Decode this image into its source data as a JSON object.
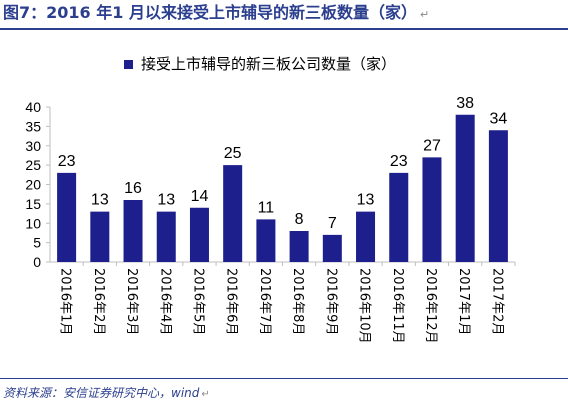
{
  "header": {
    "title": "图7：2016 年1 月以来接受上市辅导的新三板数量（家）",
    "title_mark": "↵"
  },
  "footer": {
    "source": "资料来源：安信证券研究中心，wind",
    "source_mark": "↵"
  },
  "colors": {
    "bar": "#1c1f8c",
    "title": "#2b3f8e",
    "axis": "#bfbfbf"
  },
  "chart_data": {
    "type": "bar",
    "title": "",
    "xlabel": "",
    "ylabel": "",
    "ylim": [
      0,
      40
    ],
    "yticks": [
      0,
      5,
      10,
      15,
      20,
      25,
      30,
      35,
      40
    ],
    "grid": false,
    "legend_position": "top-center",
    "categories": [
      "2016年1月",
      "2016年2月",
      "2016年3月",
      "2016年4月",
      "2016年5月",
      "2016年6月",
      "2016年7月",
      "2016年8月",
      "2016年9月",
      "2016年10月",
      "2016年11月",
      "2016年12月",
      "2017年1月",
      "2017年2月"
    ],
    "series": [
      {
        "name": "接受上市辅导的新三板公司数量（家）",
        "values": [
          23,
          13,
          16,
          13,
          14,
          25,
          11,
          8,
          7,
          13,
          23,
          27,
          38,
          34
        ]
      }
    ]
  }
}
